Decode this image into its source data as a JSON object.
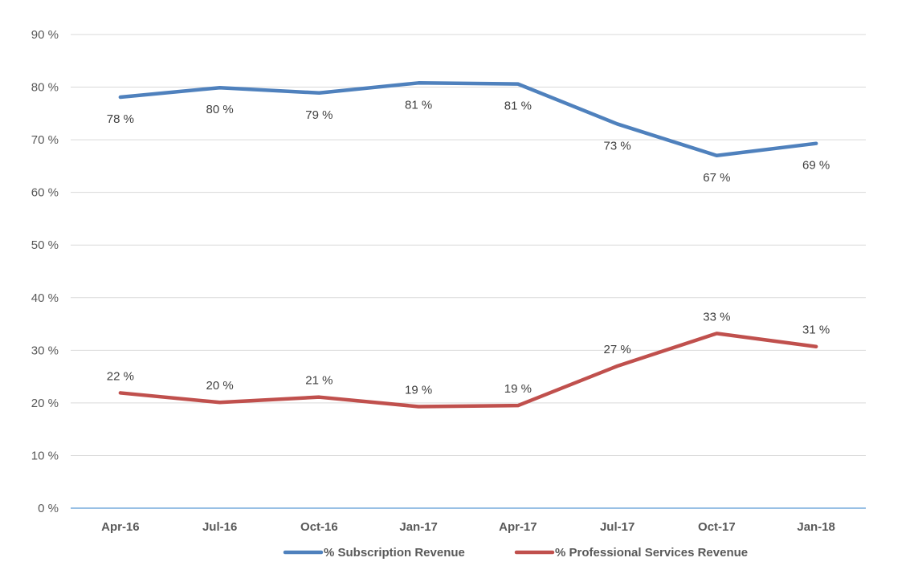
{
  "chart_data": {
    "type": "line",
    "title": "",
    "xlabel": "",
    "ylabel": "",
    "categories": [
      "Apr-16",
      "Jul-16",
      "Oct-16",
      "Jan-17",
      "Apr-17",
      "Jul-17",
      "Oct-17",
      "Jan-18"
    ],
    "ylim": [
      0,
      90
    ],
    "yticks": [
      0,
      10,
      20,
      30,
      40,
      50,
      60,
      70,
      80,
      90
    ],
    "ytick_labels": [
      "0 %",
      "10 %",
      "20 %",
      "30 %",
      "40 %",
      "50 %",
      "60 %",
      "70 %",
      "80 %",
      "90 %"
    ],
    "grid": true,
    "legend_position": "bottom",
    "series": [
      {
        "name": "% Subscription Revenue",
        "color": "#4f81bd",
        "values": [
          78.1,
          79.9,
          78.9,
          80.8,
          80.6,
          73.0,
          67.0,
          69.3
        ],
        "labels": [
          "78 %",
          "80 %",
          "79 %",
          "81 %",
          "81 %",
          "73 %",
          "67 %",
          "69 %"
        ],
        "label_position": "below"
      },
      {
        "name": "% Professional Services Revenue",
        "color": "#c0504d",
        "values": [
          21.9,
          20.1,
          21.1,
          19.3,
          19.5,
          27.0,
          33.2,
          30.7
        ],
        "labels": [
          "22 %",
          "20 %",
          "21 %",
          "19 %",
          "19 %",
          "27 %",
          "33 %",
          "31 %"
        ],
        "label_position": "above"
      }
    ]
  }
}
